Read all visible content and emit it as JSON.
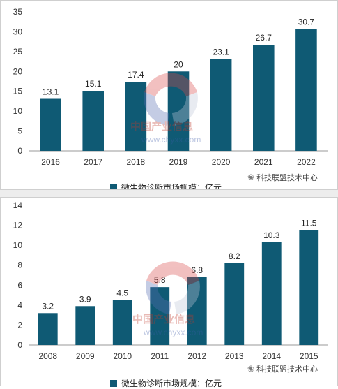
{
  "colors": {
    "bar": "#0f5a74",
    "axis": "#999999"
  },
  "chart_data": [
    {
      "type": "bar",
      "categories": [
        "2016",
        "2017",
        "2018",
        "2019",
        "2020",
        "2021",
        "2022"
      ],
      "values": [
        13.1,
        15.1,
        17.4,
        20,
        23.1,
        26.7,
        30.7
      ],
      "data_labels": [
        "13.1",
        "15.1",
        "17.4",
        "20",
        "23.1",
        "26.7",
        "30.7"
      ],
      "yticks": [
        "0",
        "5",
        "10",
        "15",
        "20",
        "25",
        "30",
        "35"
      ],
      "ylim": [
        0,
        35
      ],
      "legend": "微生物诊断市场规模：亿元",
      "legend_position": "bottom",
      "watermark": "科技联盟技术中心",
      "stamp_text": [
        "中国产业信息",
        "www.chyxx.com"
      ]
    },
    {
      "type": "bar",
      "categories": [
        "2008",
        "2009",
        "2010",
        "2011",
        "2012",
        "2013",
        "2014",
        "2015"
      ],
      "values": [
        3.2,
        3.9,
        4.5,
        5.8,
        6.8,
        8.2,
        10.3,
        11.5
      ],
      "data_labels": [
        "3.2",
        "3.9",
        "4.5",
        "5.8",
        "6.8",
        "8.2",
        "10.3",
        "11.5"
      ],
      "yticks": [
        "0",
        "2",
        "4",
        "6",
        "8",
        "10",
        "12",
        "14"
      ],
      "ylim": [
        0,
        14
      ],
      "legend": "微生物诊断市场规模：亿元",
      "legend_position": "bottom",
      "watermark": "科技联盟技术中心",
      "stamp_text": [
        "中国产业信息",
        "www.chyxx.com"
      ]
    }
  ]
}
